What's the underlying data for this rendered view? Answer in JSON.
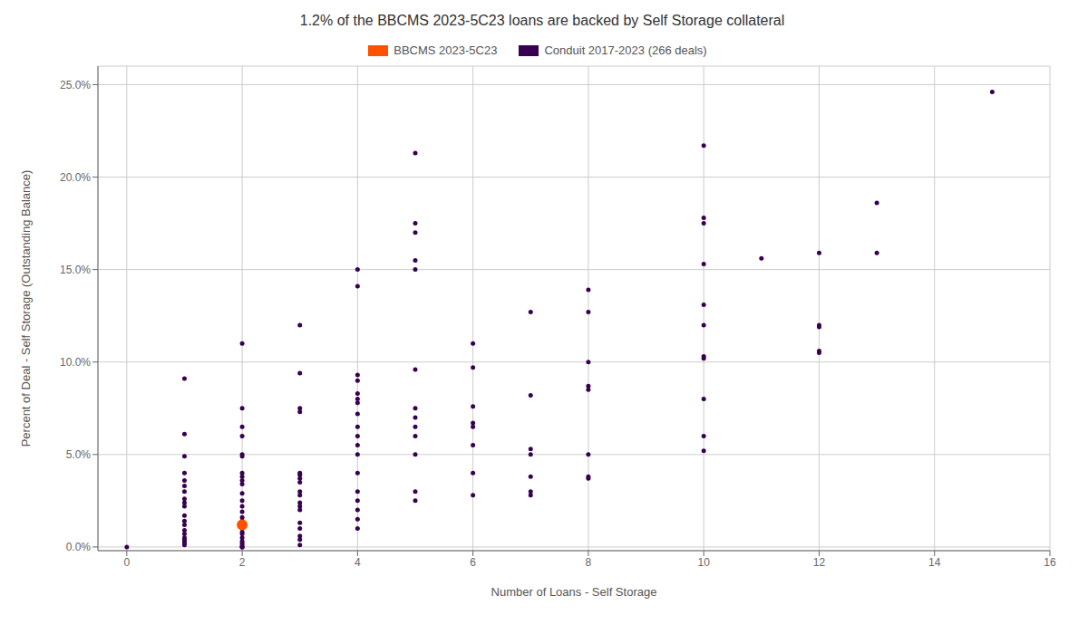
{
  "chart_data": {
    "type": "scatter",
    "title": "1.2% of the BBCMS 2023-5C23 loans are backed by Self Storage collateral",
    "xlabel": "Number of Loans - Self Storage",
    "ylabel": "Percent of Deal - Self Storage (Outstanding Balance)",
    "xlim": [
      -0.5,
      16
    ],
    "ylim": [
      -0.002,
      0.26
    ],
    "xticks": [
      0,
      2,
      4,
      6,
      8,
      10,
      12,
      14,
      16
    ],
    "yticks": [
      {
        "value": 0.0,
        "label": "0.0%"
      },
      {
        "value": 0.05,
        "label": "5.0%"
      },
      {
        "value": 0.1,
        "label": "10.0%"
      },
      {
        "value": 0.15,
        "label": "15.0%"
      },
      {
        "value": 0.2,
        "label": "20.0%"
      },
      {
        "value": 0.25,
        "label": "25.0%"
      }
    ],
    "grid": true,
    "legend": "top",
    "series": [
      {
        "name": "BBCMS 2023-5C23",
        "color": "#FF5200",
        "x": [
          2
        ],
        "values": [
          0.012
        ]
      },
      {
        "name": "Conduit 2017-2023 (266 deals)",
        "color": "#380050",
        "x": [
          0,
          1,
          1,
          1,
          1,
          1,
          1,
          1,
          1,
          1,
          1,
          1,
          1,
          1,
          1,
          1,
          1,
          1,
          1,
          1,
          1,
          2,
          2,
          2,
          2,
          2,
          2,
          2,
          2,
          2,
          2,
          2,
          2,
          2,
          2,
          2,
          2,
          2,
          2,
          2,
          2,
          2,
          2,
          2,
          2,
          2,
          2,
          2,
          3,
          3,
          3,
          3,
          3,
          3,
          3,
          3,
          3,
          3,
          3,
          3,
          3,
          3,
          3,
          3,
          3,
          3,
          4,
          4,
          4,
          4,
          4,
          4,
          4,
          4,
          4,
          4,
          4,
          4,
          4,
          4,
          4,
          4,
          4,
          4,
          5,
          5,
          5,
          5,
          5,
          5,
          5,
          5,
          5,
          5,
          5,
          5,
          5,
          6,
          6,
          6,
          6,
          6,
          6,
          6,
          6,
          7,
          7,
          7,
          7,
          7,
          7,
          7,
          8,
          8,
          8,
          8,
          8,
          8,
          8,
          8,
          10,
          10,
          10,
          10,
          10,
          10,
          10,
          10,
          10,
          10,
          10,
          11,
          12,
          12,
          12,
          12,
          12,
          13,
          13,
          15
        ],
        "values": [
          0.0,
          0.091,
          0.061,
          0.049,
          0.04,
          0.036,
          0.033,
          0.03,
          0.026,
          0.024,
          0.022,
          0.017,
          0.014,
          0.012,
          0.009,
          0.007,
          0.005,
          0.004,
          0.003,
          0.002,
          0.001,
          0.11,
          0.075,
          0.065,
          0.06,
          0.05,
          0.049,
          0.04,
          0.038,
          0.036,
          0.034,
          0.029,
          0.025,
          0.022,
          0.019,
          0.016,
          0.014,
          0.012,
          0.01,
          0.008,
          0.007,
          0.005,
          0.003,
          0.002,
          0.001,
          0.0,
          0.0,
          0.0,
          0.12,
          0.094,
          0.075,
          0.073,
          0.04,
          0.039,
          0.037,
          0.035,
          0.03,
          0.028,
          0.024,
          0.022,
          0.02,
          0.013,
          0.01,
          0.006,
          0.004,
          0.001,
          0.15,
          0.141,
          0.093,
          0.09,
          0.083,
          0.08,
          0.078,
          0.072,
          0.065,
          0.06,
          0.055,
          0.05,
          0.04,
          0.03,
          0.025,
          0.02,
          0.015,
          0.01,
          0.213,
          0.175,
          0.17,
          0.155,
          0.15,
          0.096,
          0.075,
          0.07,
          0.065,
          0.06,
          0.05,
          0.03,
          0.025,
          0.11,
          0.097,
          0.076,
          0.067,
          0.065,
          0.055,
          0.04,
          0.028,
          0.127,
          0.082,
          0.053,
          0.05,
          0.038,
          0.03,
          0.028,
          0.139,
          0.127,
          0.1,
          0.087,
          0.085,
          0.05,
          0.038,
          0.037,
          0.217,
          0.178,
          0.175,
          0.153,
          0.131,
          0.12,
          0.103,
          0.102,
          0.08,
          0.06,
          0.052,
          0.156,
          0.159,
          0.12,
          0.119,
          0.106,
          0.105,
          0.186,
          0.159,
          0.246
        ]
      }
    ]
  }
}
